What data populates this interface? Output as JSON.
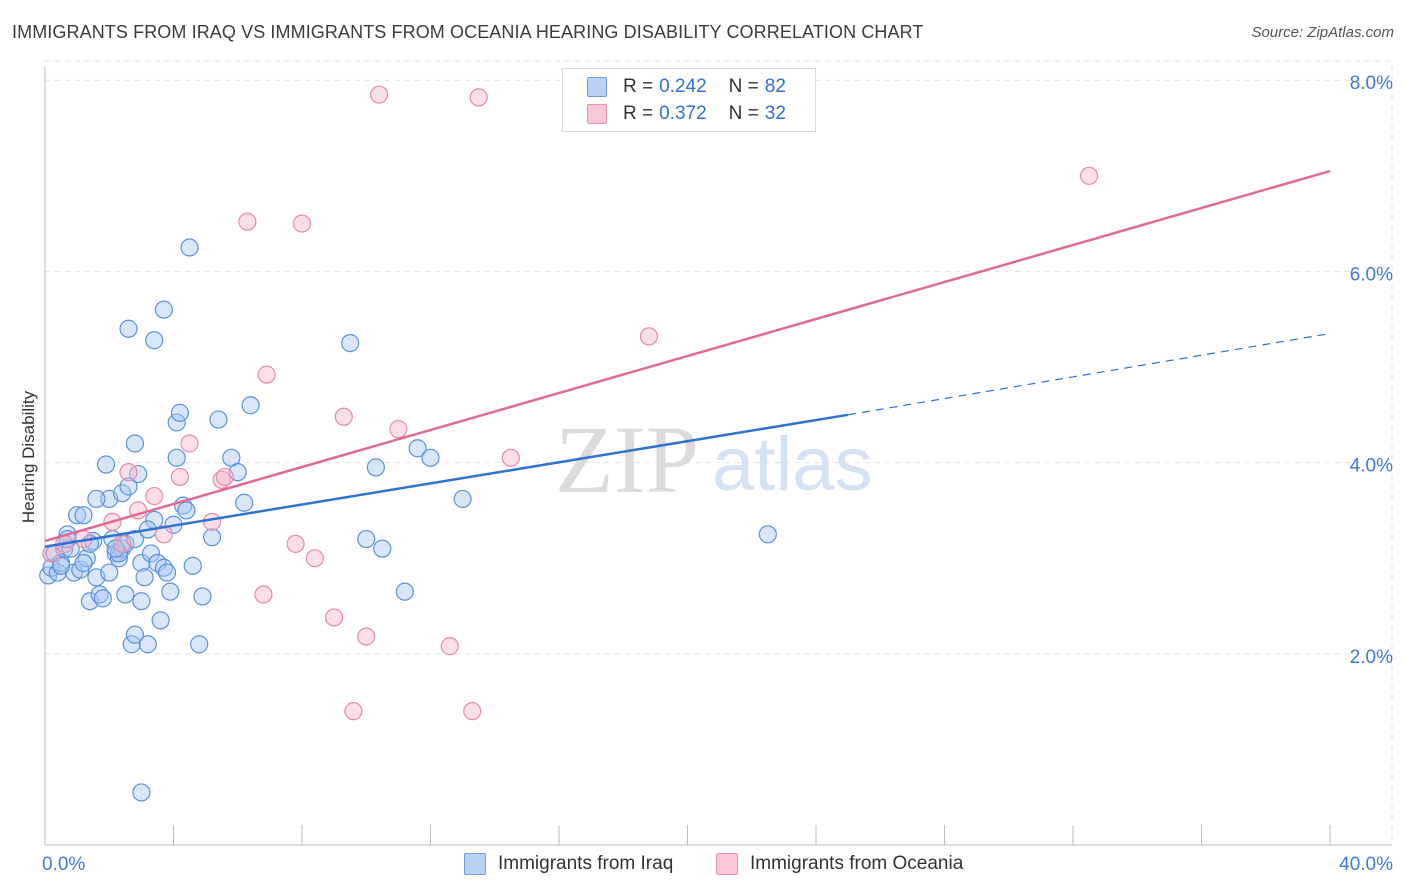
{
  "header": {
    "title": "IMMIGRANTS FROM IRAQ VS IMMIGRANTS FROM OCEANIA HEARING DISABILITY CORRELATION CHART",
    "source": "Source: ZipAtlas.com"
  },
  "watermark": {
    "zip": "ZIP",
    "atlas": "atlas"
  },
  "legend": {
    "rows": [
      {
        "r_label": "R =",
        "r_value": "0.242",
        "n_label": "N =",
        "n_value": "82"
      },
      {
        "r_label": "R =",
        "r_value": "0.372",
        "n_label": "N =",
        "n_value": "32"
      }
    ]
  },
  "colors": {
    "iraq_fill": "#a8c8f0",
    "iraq_stroke": "#5b92de",
    "iraq_line": "#2f72d0",
    "oceania_fill": "#f5b8cb",
    "oceania_stroke": "#e88aaa",
    "oceania_line": "#e06a95",
    "tick_label": "#3f7ad6",
    "grid": "#e3e3e3"
  },
  "chart_data": {
    "type": "scatter",
    "title": "IMMIGRANTS FROM IRAQ VS IMMIGRANTS FROM OCEANIA HEARING DISABILITY CORRELATION CHART",
    "xlabel": "",
    "ylabel": "Hearing Disability",
    "xlim": [
      0,
      40
    ],
    "ylim": [
      0,
      8.2
    ],
    "x_tick_labels": [
      "0.0%",
      "40.0%"
    ],
    "y_ticks": [
      {
        "value": 2,
        "label": "2.0%"
      },
      {
        "value": 4,
        "label": "4.0%"
      },
      {
        "value": 6,
        "label": "6.0%"
      },
      {
        "value": 8,
        "label": "8.0%"
      }
    ],
    "series": [
      {
        "name": "Immigrants from Iraq",
        "r": 0.242,
        "n": 82,
        "trend": {
          "x0": 0,
          "y0": 3.12,
          "x1": 25,
          "y1": 4.5,
          "dashed_to_x": 40,
          "dashed_to_y": 5.35
        },
        "points": [
          [
            0.1,
            2.82
          ],
          [
            0.2,
            2.9
          ],
          [
            0.3,
            3.05
          ],
          [
            0.4,
            2.85
          ],
          [
            0.5,
            2.95
          ],
          [
            0.6,
            3.1
          ],
          [
            0.7,
            3.25
          ],
          [
            0.8,
            3.1
          ],
          [
            0.9,
            2.85
          ],
          [
            1.0,
            3.45
          ],
          [
            1.1,
            2.88
          ],
          [
            1.2,
            3.45
          ],
          [
            1.3,
            3.0
          ],
          [
            1.4,
            2.55
          ],
          [
            1.5,
            3.18
          ],
          [
            1.6,
            2.8
          ],
          [
            1.7,
            2.62
          ],
          [
            1.8,
            2.58
          ],
          [
            1.9,
            3.98
          ],
          [
            2.0,
            3.62
          ],
          [
            2.1,
            3.2
          ],
          [
            2.2,
            3.05
          ],
          [
            2.3,
            3.0
          ],
          [
            2.4,
            3.1
          ],
          [
            2.5,
            2.62
          ],
          [
            2.5,
            3.15
          ],
          [
            2.3,
            3.05
          ],
          [
            2.4,
            3.68
          ],
          [
            2.6,
            3.75
          ],
          [
            2.8,
            3.2
          ],
          [
            2.7,
            2.1
          ],
          [
            2.8,
            2.2
          ],
          [
            2.9,
            3.88
          ],
          [
            2.8,
            4.2
          ],
          [
            2.6,
            5.4
          ],
          [
            3.0,
            2.95
          ],
          [
            3.0,
            2.55
          ],
          [
            3.1,
            2.8
          ],
          [
            3.2,
            2.1
          ],
          [
            3.3,
            3.05
          ],
          [
            3.4,
            3.4
          ],
          [
            3.4,
            5.28
          ],
          [
            3.5,
            2.95
          ],
          [
            3.6,
            2.35
          ],
          [
            3.7,
            2.9
          ],
          [
            3.7,
            5.6
          ],
          [
            3.8,
            2.85
          ],
          [
            3.9,
            2.65
          ],
          [
            4.0,
            3.35
          ],
          [
            4.1,
            4.05
          ],
          [
            4.1,
            4.42
          ],
          [
            4.2,
            4.52
          ],
          [
            4.3,
            3.55
          ],
          [
            4.4,
            3.5
          ],
          [
            4.5,
            6.25
          ],
          [
            4.6,
            2.92
          ],
          [
            4.8,
            2.1
          ],
          [
            4.9,
            2.6
          ],
          [
            5.2,
            3.22
          ],
          [
            5.4,
            4.45
          ],
          [
            5.8,
            4.05
          ],
          [
            6.0,
            3.9
          ],
          [
            6.2,
            3.58
          ],
          [
            6.4,
            4.6
          ],
          [
            9.5,
            5.25
          ],
          [
            10.0,
            3.2
          ],
          [
            10.3,
            3.95
          ],
          [
            10.5,
            3.1
          ],
          [
            11.2,
            2.65
          ],
          [
            11.6,
            4.15
          ],
          [
            12.0,
            4.05
          ],
          [
            13.0,
            3.62
          ],
          [
            22.5,
            3.25
          ],
          [
            3.0,
            0.55
          ],
          [
            0.5,
            2.92
          ],
          [
            1.2,
            2.95
          ],
          [
            1.6,
            3.62
          ],
          [
            2.0,
            2.85
          ],
          [
            3.2,
            3.3
          ],
          [
            0.7,
            3.2
          ],
          [
            1.4,
            3.15
          ],
          [
            2.2,
            3.1
          ]
        ]
      },
      {
        "name": "Immigrants from Oceania",
        "r": 0.372,
        "n": 32,
        "trend": {
          "x0": 0,
          "y0": 3.18,
          "x1": 40,
          "y1": 7.05
        },
        "points": [
          [
            0.2,
            3.05
          ],
          [
            0.6,
            3.15
          ],
          [
            1.2,
            3.2
          ],
          [
            2.1,
            3.38
          ],
          [
            2.4,
            3.15
          ],
          [
            2.6,
            3.9
          ],
          [
            2.9,
            3.5
          ],
          [
            3.4,
            3.65
          ],
          [
            3.7,
            3.25
          ],
          [
            4.2,
            3.85
          ],
          [
            4.5,
            4.2
          ],
          [
            5.2,
            3.38
          ],
          [
            5.5,
            3.82
          ],
          [
            5.6,
            3.85
          ],
          [
            6.3,
            6.52
          ],
          [
            6.8,
            2.62
          ],
          [
            6.9,
            4.92
          ],
          [
            7.8,
            3.15
          ],
          [
            8.0,
            6.5
          ],
          [
            8.4,
            3.0
          ],
          [
            9.0,
            2.38
          ],
          [
            9.3,
            4.48
          ],
          [
            9.6,
            1.4
          ],
          [
            10.0,
            2.18
          ],
          [
            10.4,
            7.85
          ],
          [
            11.0,
            4.35
          ],
          [
            12.6,
            2.08
          ],
          [
            13.3,
            1.4
          ],
          [
            13.5,
            7.82
          ],
          [
            14.5,
            4.05
          ],
          [
            18.8,
            5.32
          ],
          [
            32.5,
            7.0
          ]
        ]
      }
    ],
    "legend_entries": [
      "Immigrants from Iraq",
      "Immigrants from Oceania"
    ]
  }
}
